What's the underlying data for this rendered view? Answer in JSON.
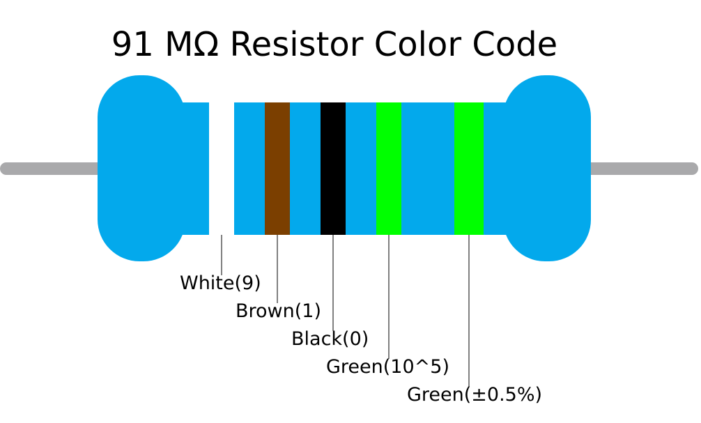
{
  "title": "91 MΩ Resistor Color Code",
  "bands": [
    {
      "label": "White(9)",
      "color": "#ffffff"
    },
    {
      "label": "Brown(1)",
      "color": "#7b3f00"
    },
    {
      "label": "Black(0)",
      "color": "#000000"
    },
    {
      "label": "Green(10^5)",
      "color": "#00ff00"
    },
    {
      "label": "Green(±0.5%)",
      "color": "#00ff00"
    }
  ]
}
